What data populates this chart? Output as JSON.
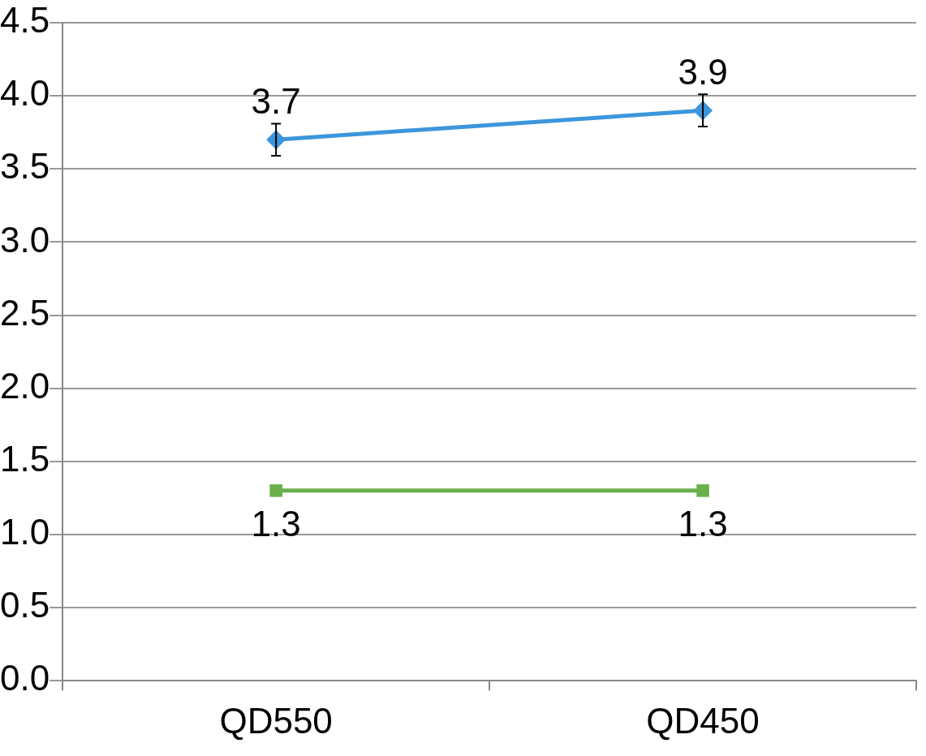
{
  "chart_data": {
    "type": "line",
    "categories": [
      "QD550",
      "QD450"
    ],
    "series": [
      {
        "color": "#3c96dc",
        "values": [
          3.7,
          3.9
        ],
        "errors": [
          0.11,
          0.11
        ],
        "marker": "diamond"
      },
      {
        "color": "#6aaf4c",
        "values": [
          1.3,
          1.3
        ],
        "marker": "square"
      }
    ],
    "ylim": [
      0,
      4.5
    ],
    "yticks": [
      {
        "value": 0,
        "label": "0.0"
      },
      {
        "value": 0.5,
        "label": "0.5"
      },
      {
        "value": 1,
        "label": "1.0"
      },
      {
        "value": 1.5,
        "label": "1.5"
      },
      {
        "value": 2,
        "label": "2.0"
      },
      {
        "value": 2.5,
        "label": "2.5"
      },
      {
        "value": 3,
        "label": "3.0"
      },
      {
        "value": 3.5,
        "label": "3.5"
      },
      {
        "value": 4,
        "label": "4.0"
      },
      {
        "value": 4.5,
        "label": "4.5"
      }
    ],
    "grid": "y",
    "legend": false,
    "data_labels": true,
    "line_style": "solid"
  }
}
